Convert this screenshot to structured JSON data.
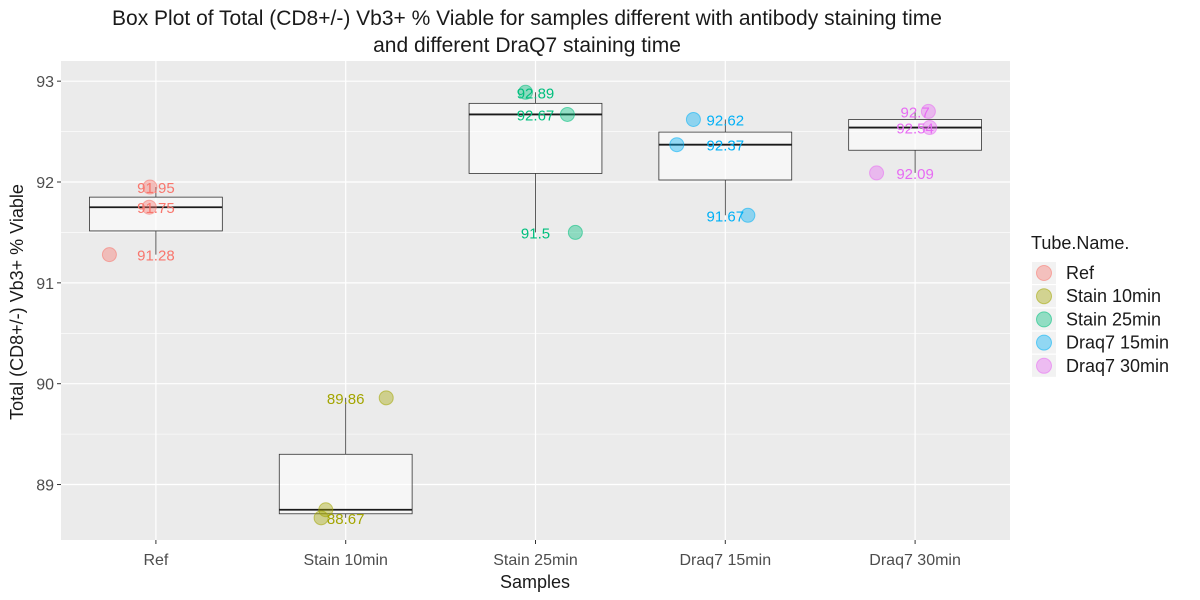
{
  "chart_data": {
    "type": "box",
    "title": "Box Plot of Total (CD8+/-) Vb3+ % Viable for samples different with antibody staining time",
    "title_line2": "and different DraQ7 staining time",
    "xlabel": "Samples",
    "ylabel": "Total (CD8+/-) Vb3+ % Viable",
    "ylim": [
      88.45,
      93.2
    ],
    "yticks": [
      89,
      90,
      91,
      92,
      93
    ],
    "categories": [
      "Ref",
      "Stain 10min",
      "Stain 25min",
      "Draq7 15min",
      "Draq7 30min"
    ],
    "legend_title": "Tube.Name.",
    "legend_position": "right",
    "grid": true,
    "series": [
      {
        "name": "Ref",
        "color": "#F8766D",
        "box": {
          "min": 91.28,
          "q1": 91.515,
          "median": 91.75,
          "q3": 91.85,
          "max": 91.95
        },
        "points": [
          91.95,
          91.75,
          91.28
        ],
        "labels": [
          "91.95",
          "91.75",
          "91.28"
        ]
      },
      {
        "name": "Stain 10min",
        "color": "#A3A500",
        "box": {
          "min": 88.67,
          "q1": 88.71,
          "median": 88.75,
          "q3": 89.3,
          "max": 89.86
        },
        "points": [
          89.86,
          88.75,
          88.67
        ],
        "labels": [
          "89.86",
          "88.67"
        ]
      },
      {
        "name": "Stain 25min",
        "color": "#00BF7D",
        "box": {
          "min": 91.5,
          "q1": 92.085,
          "median": 92.67,
          "q3": 92.78,
          "max": 92.89
        },
        "points": [
          92.89,
          92.67,
          91.5
        ],
        "labels": [
          "92.89",
          "92.67",
          "91.5"
        ]
      },
      {
        "name": "Draq7 15min",
        "color": "#00B0F6",
        "box": {
          "min": 91.67,
          "q1": 92.02,
          "median": 92.37,
          "q3": 92.495,
          "max": 92.62
        },
        "points": [
          92.62,
          92.37,
          91.67
        ],
        "labels": [
          "92.62",
          "92.37",
          "91.67"
        ]
      },
      {
        "name": "Draq7 30min",
        "color": "#E76BF3",
        "box": {
          "min": 92.09,
          "q1": 92.315,
          "median": 92.54,
          "q3": 92.62,
          "max": 92.7
        },
        "points": [
          92.7,
          92.54,
          92.09
        ],
        "labels": [
          "92.7",
          "92.54",
          "92.09"
        ]
      }
    ]
  }
}
